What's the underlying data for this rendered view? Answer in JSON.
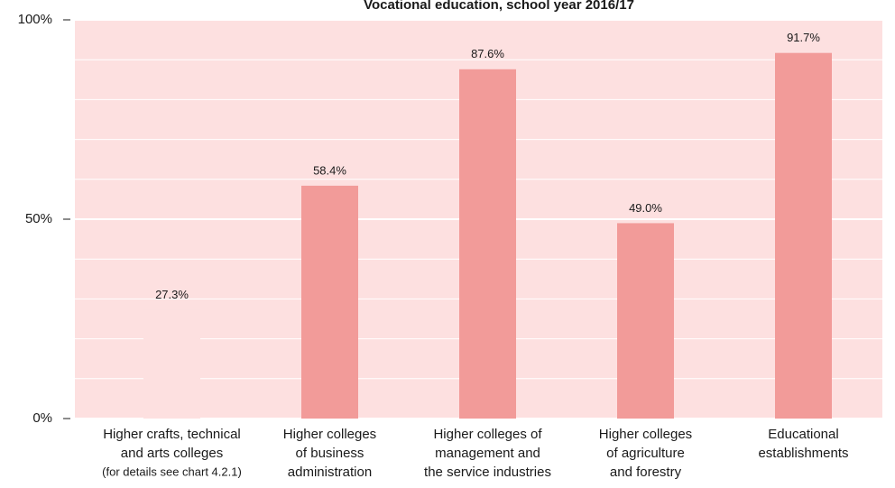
{
  "chart_data": {
    "type": "bar",
    "title": "Vocational education, school year 2016/17",
    "categories": [
      [
        "Higher crafts, technical",
        "and arts colleges",
        "(for details see chart 4.2.1)"
      ],
      [
        "Higher colleges",
        "of business",
        "administration"
      ],
      [
        "Higher colleges of",
        "management and",
        "the service industries"
      ],
      [
        "Higher colleges",
        "of agriculture",
        "and forestry"
      ],
      [
        "Educational",
        "establishments"
      ]
    ],
    "values": [
      27.3,
      58.4,
      87.6,
      49.0,
      91.7
    ],
    "value_labels": [
      "27.3%",
      "58.4%",
      "87.6%",
      "49.0%",
      "91.7%"
    ],
    "colors": [
      "#fde0e0",
      "#f29b99",
      "#f29b99",
      "#f29b99",
      "#f29b99"
    ],
    "plot_background": "#fde0e0",
    "ylim": [
      0,
      100
    ],
    "yticks": [
      {
        "value": 0,
        "label": "0%"
      },
      {
        "value": 50,
        "label": "50%"
      },
      {
        "value": 100,
        "label": "100%"
      }
    ],
    "minor_yticks": [
      10,
      20,
      30,
      40,
      60,
      70,
      80,
      90
    ],
    "grid": true
  }
}
